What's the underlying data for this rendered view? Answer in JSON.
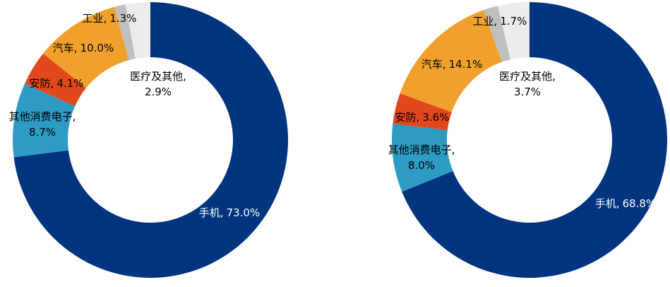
{
  "chart_data": [
    {
      "type": "donut",
      "categories": [
        "手机,",
        "其他消费电子,",
        "安防,",
        "汽车,",
        "工业,",
        "医疗及其他,"
      ],
      "values": [
        73.0,
        8.7,
        4.1,
        10.0,
        1.3,
        2.9
      ],
      "value_labels": [
        "73.0%",
        "8.7%",
        "4.1%",
        "10.0%",
        "1.3%",
        "2.9%"
      ],
      "colors": [
        "#00347f",
        "#2d9bc3",
        "#e2481b",
        "#f0a12b",
        "#bfbfbf",
        "#ececec"
      ]
    },
    {
      "type": "donut",
      "categories": [
        "手机,",
        "其他消费电子,",
        "安防,",
        "汽车,",
        "工业,",
        "医疗及其他,"
      ],
      "values": [
        68.8,
        8.0,
        3.6,
        14.1,
        1.7,
        3.7
      ],
      "value_labels": [
        "68.8%",
        "8.0%",
        "3.6%",
        "14.1%",
        "1.7%",
        "3.7%"
      ],
      "colors": [
        "#00347f",
        "#2d9bc3",
        "#e2481b",
        "#f0a12b",
        "#bfbfbf",
        "#ececec"
      ]
    }
  ]
}
